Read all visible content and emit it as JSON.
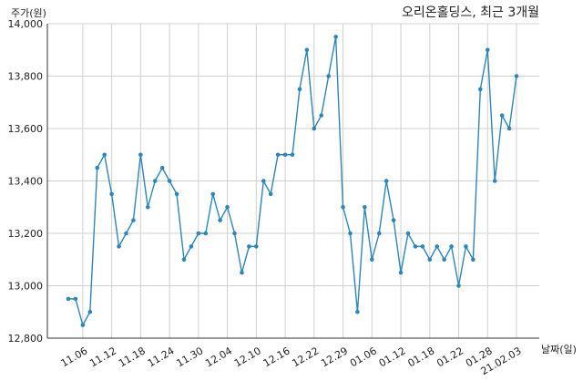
{
  "chart_data": {
    "type": "line",
    "title": "오리온홀딩스, 최근 3개월",
    "xlabel": "날짜(일)",
    "ylabel": "주가(원)",
    "ylim": [
      12800,
      14000
    ],
    "yticks": [
      12800,
      13000,
      13200,
      13400,
      13600,
      13800,
      14000
    ],
    "ytick_labels": [
      "12,800",
      "13,000",
      "13,200",
      "13,400",
      "13,600",
      "13,800",
      "14,000"
    ],
    "xtick_labels": [
      "11.06",
      "11.12",
      "11.18",
      "11.24",
      "11.30",
      "12.04",
      "12.10",
      "12.16",
      "12.22",
      "12.29",
      "01.06",
      "01.12",
      "01.18",
      "01.22",
      "01.28",
      "21.02.03"
    ],
    "xtick_index": [
      2,
      6,
      10,
      14,
      18,
      22,
      26,
      30,
      34,
      38,
      42,
      46,
      50,
      54,
      58,
      62
    ],
    "grid": true,
    "line_color": "#2e86b8",
    "series": [
      {
        "values": [
          12950,
          12950,
          12850,
          12900,
          13450,
          13500,
          13350,
          13150,
          13200,
          13250,
          13500,
          13300,
          13400,
          13450,
          13400,
          13350,
          13100,
          13150,
          13200,
          13200,
          13350,
          13250,
          13300,
          13200,
          13050,
          13150,
          13150,
          13400,
          13350,
          13500,
          13500,
          13500,
          13750,
          13900,
          13600,
          13650,
          13800,
          13950,
          13300,
          13200,
          12900,
          13300,
          13100,
          13200,
          13400,
          13250,
          13050,
          13200,
          13150,
          13150,
          13100,
          13150,
          13100,
          13150,
          13000,
          13150,
          13100,
          13750,
          13900,
          13400,
          13650,
          13600,
          13800
        ]
      }
    ]
  }
}
